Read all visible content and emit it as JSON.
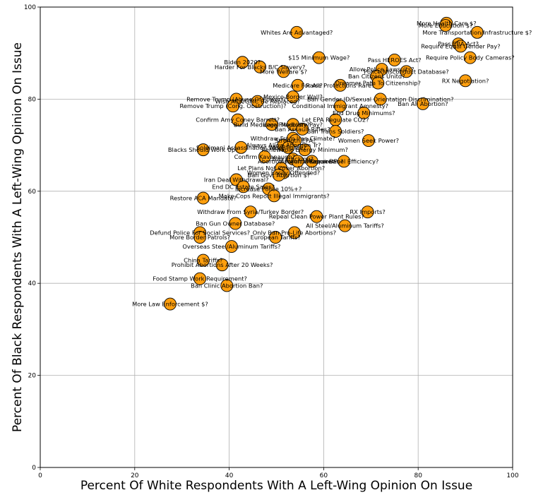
{
  "chart_data": {
    "type": "scatter",
    "xlabel": "Percent Of White Respondents With A Left-Wing Opinion On Issue",
    "ylabel": "Percent Of Black Respondents With A Left-Wing Opinion On Issue",
    "xlim": [
      0,
      100
    ],
    "ylim": [
      0,
      100
    ],
    "xticks": [
      0,
      20,
      40,
      60,
      80,
      100
    ],
    "yticks": [
      0,
      20,
      40,
      60,
      80,
      100
    ],
    "grid": true,
    "marker_color": "#ff9f0e",
    "points": [
      {
        "label": "More Health Care $?",
        "x": 86,
        "y": 96.5
      },
      {
        "label": "More Education $?",
        "x": 85.8,
        "y": 96
      },
      {
        "label": "More Transportation/Infrastructure $?",
        "x": 92.5,
        "y": 94.5
      },
      {
        "label": "Whites Are Advantaged?",
        "x": 54.3,
        "y": 94.5
      },
      {
        "label": "Pass ERA Act?",
        "x": 88.5,
        "y": 92
      },
      {
        "label": "Require Equal Gender Pay?",
        "x": 89,
        "y": 91.5
      },
      {
        "label": "Require Policy Body Cameras?",
        "x": 91,
        "y": 89
      },
      {
        "label": "$15 Minimum Wage?",
        "x": 59,
        "y": 89
      },
      {
        "label": "Pass HEROES Act?",
        "x": 75,
        "y": 88.5
      },
      {
        "label": "Biden 2020?",
        "x": 42.8,
        "y": 88
      },
      {
        "label": "Harder For Blacks B/C Slavery?",
        "x": 46.5,
        "y": 87
      },
      {
        "label": "Allow Police Lawsuits?",
        "x": 72.3,
        "y": 86.5
      },
      {
        "label": "More Welfare $?",
        "x": 51.5,
        "y": 86
      },
      {
        "label": "Police Misconduct Database?",
        "x": 77.5,
        "y": 86
      },
      {
        "label": "Ban Citizens Unitd?",
        "x": 71.2,
        "y": 85
      },
      {
        "label": "RX Negotiation?",
        "x": 90,
        "y": 84
      },
      {
        "label": "Dreamer Path To Citizenship?",
        "x": 71.5,
        "y": 83.5
      },
      {
        "label": "Medicare For All?",
        "x": 54.5,
        "y": 83
      },
      {
        "label": "Raise Protections Rare?",
        "x": 63.5,
        "y": 83
      },
      {
        "label": "Mexico Border Wall?",
        "x": 53.5,
        "y": 80.5
      },
      {
        "label": "Remove Trump (Abuse Of Power)?",
        "x": 41.5,
        "y": 80
      },
      {
        "label": "Ban Gender ID/Sexual Orientation Discrimination?",
        "x": 72,
        "y": 80
      },
      {
        "label": "Wish ACA/GMC Be Replaced?",
        "x": 46,
        "y": 79.5
      },
      {
        "label": "Ban All Abortion?",
        "x": 81,
        "y": 79
      },
      {
        "label": "Remove Trump (Cong. Obstruction)?",
        "x": 40.8,
        "y": 78.5
      },
      {
        "label": "Conditional Immigrant Amnesty?",
        "x": 63.5,
        "y": 78.5
      },
      {
        "label": "End Drug Minimums?",
        "x": 68.5,
        "y": 77
      },
      {
        "label": "Confirm Amy Coney Barrett?",
        "x": 41.8,
        "y": 75.5
      },
      {
        "label": "Let EPA Regulate CO2?",
        "x": 62.5,
        "y": 75.5
      },
      {
        "label": "Build Medicare Flexibility?",
        "x": 49,
        "y": 74.5
      },
      {
        "label": "Legal Medicare Pay?",
        "x": 53.5,
        "y": 74.5
      },
      {
        "label": "Ban Assault Rifles?",
        "x": 55.5,
        "y": 73.5
      },
      {
        "label": "Ban Trans Soldiers?",
        "x": 62.5,
        "y": 73
      },
      {
        "label": "Withdraw From Iran Climate?",
        "x": 53.5,
        "y": 71.5
      },
      {
        "label": "Strength EPA?",
        "x": 54,
        "y": 71
      },
      {
        "label": "Women Seek Power?",
        "x": 69.5,
        "y": 71
      },
      {
        "label": "Always Allow Abortion Tr?",
        "x": 51.5,
        "y": 70
      },
      {
        "label": "Soleimani Assassination Wise?",
        "x": 42.5,
        "y": 69.5
      },
      {
        "label": "More Police?",
        "x": 52.5,
        "y": 69.5
      },
      {
        "label": "Blacks Should Work Up?",
        "x": 34.5,
        "y": 69
      },
      {
        "label": "Renewable Energy Minimum?",
        "x": 56,
        "y": 69
      },
      {
        "label": "Confirm Kavanaugh?",
        "x": 47.5,
        "y": 67.5
      },
      {
        "label": "Ban Fracking?",
        "x": 53.5,
        "y": 67
      },
      {
        "label": "Require Fuel Efficiency?",
        "x": 64.3,
        "y": 66.5
      },
      {
        "label": "Abortion Parental Consent?",
        "x": 54.5,
        "y": 66.5
      },
      {
        "label": "Assault Weapon Ban?",
        "x": 57.5,
        "y": 66.5
      },
      {
        "label": "Let Plans Not Cover Abortion?",
        "x": 51,
        "y": 65
      },
      {
        "label": "Women Easily Offended?",
        "x": 51.5,
        "y": 64
      },
      {
        "label": "Ban Govt Abortion $?",
        "x": 50.5,
        "y": 63.5
      },
      {
        "label": "Iran Deal Withdrawal?",
        "x": 41.5,
        "y": 62.5
      },
      {
        "label": "End DC Estate Sales?",
        "x": 43,
        "y": 61
      },
      {
        "label": "Increase Police 10%+?",
        "x": 48.3,
        "y": 60.5
      },
      {
        "label": "Make Cops Report Illegal Immigrants?",
        "x": 49.5,
        "y": 59
      },
      {
        "label": "Restore ACA Mandate?",
        "x": 34.5,
        "y": 58.5
      },
      {
        "label": "Withdraw From Syria/Turkey Border?",
        "x": 44.5,
        "y": 55.5
      },
      {
        "label": "RX Imports?",
        "x": 69.3,
        "y": 55.5
      },
      {
        "label": "Repeal Clean Power Plant Rules?",
        "x": 58.5,
        "y": 54.5
      },
      {
        "label": "Ban Gun Owner Database?",
        "x": 41.3,
        "y": 53
      },
      {
        "label": "All Steel/Aluminum Tariffs?",
        "x": 64.5,
        "y": 52.5
      },
      {
        "label": "Defund Police For Social Services?",
        "x": 33.8,
        "y": 51
      },
      {
        "label": "Only Ban Pro-Life Abortions?",
        "x": 53.8,
        "y": 51
      },
      {
        "label": "More Border Patrols?",
        "x": 33.8,
        "y": 50
      },
      {
        "label": "European Tariffs?",
        "x": 49.8,
        "y": 50
      },
      {
        "label": "Overseas Steel/Aluminum Tariffs?",
        "x": 40.5,
        "y": 48
      },
      {
        "label": "China Tariffs?",
        "x": 34.5,
        "y": 45
      },
      {
        "label": "Prohibit Abortions After 20 Weeks?",
        "x": 38.5,
        "y": 44
      },
      {
        "label": "Food Stamp Work Requirement?",
        "x": 33.8,
        "y": 41
      },
      {
        "label": "Ban Clinic Abortion Ban?",
        "x": 39.5,
        "y": 39.5
      },
      {
        "label": "More Law Enforcement $?",
        "x": 27.5,
        "y": 35.5
      }
    ]
  }
}
